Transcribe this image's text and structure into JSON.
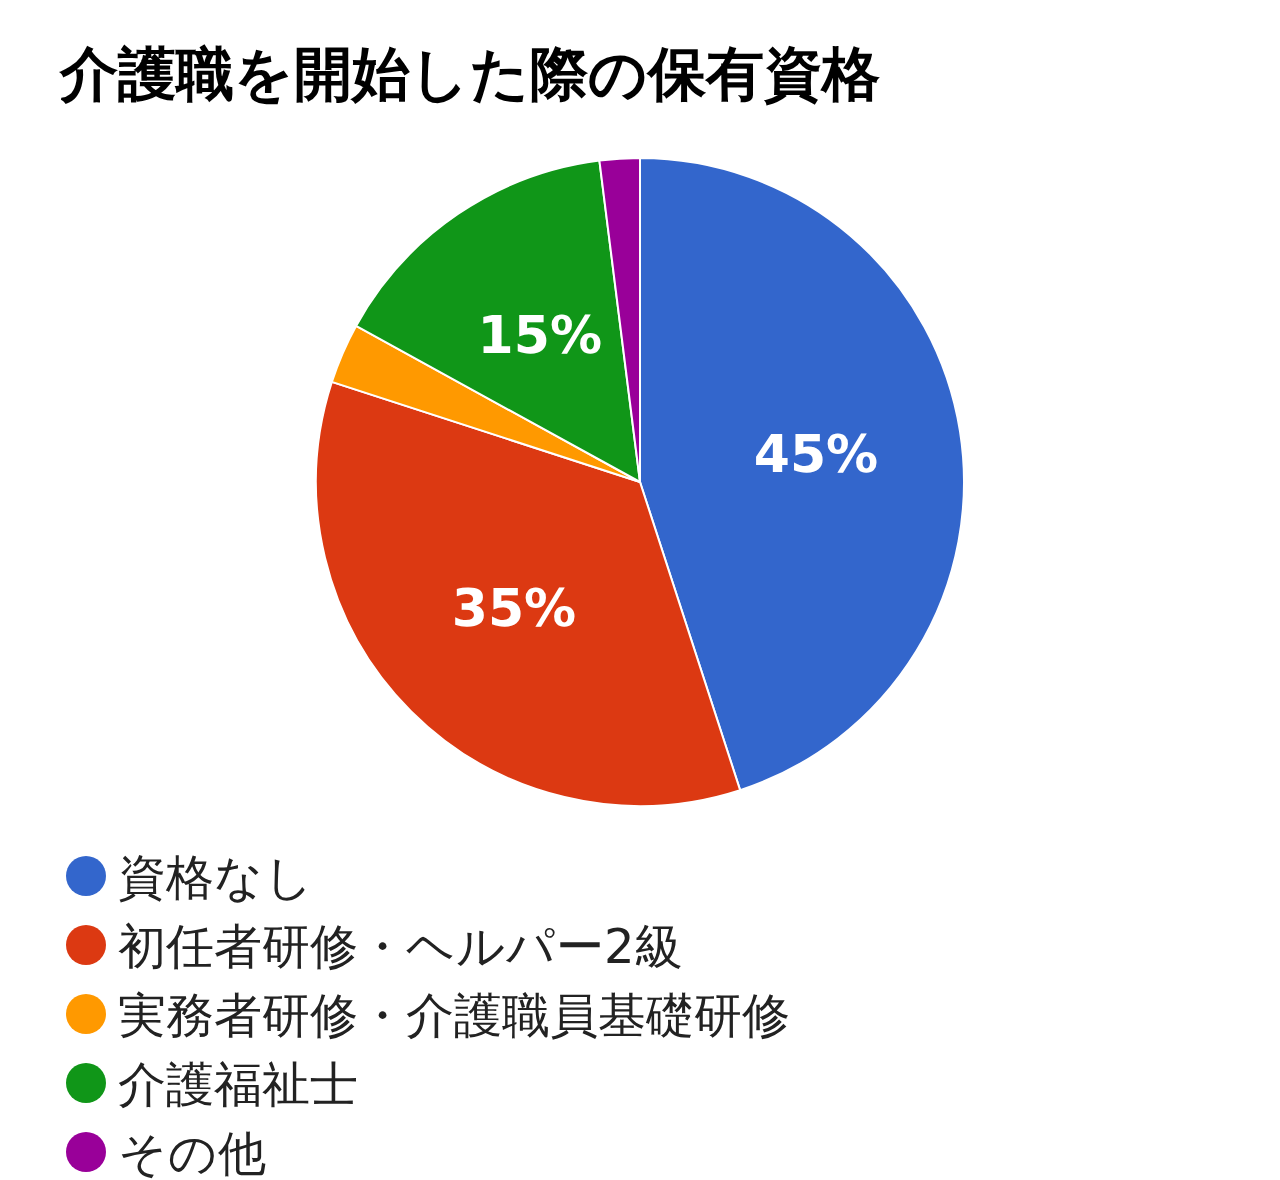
{
  "chart_data": {
    "type": "pie",
    "title": "介護職を開始した際の保有資格",
    "categories": [
      "資格なし",
      "初任者研修・ヘルパー2級",
      "実務者研修・介護職員基礎研修",
      "介護福祉士",
      "その他"
    ],
    "values": [
      45,
      35,
      3,
      15,
      2
    ],
    "colors": [
      "#3366cc",
      "#dc3912",
      "#ff9900",
      "#109618",
      "#990099"
    ],
    "value_labels": [
      "45%",
      "35%",
      null,
      "15%",
      null
    ],
    "legend": "bottom"
  }
}
